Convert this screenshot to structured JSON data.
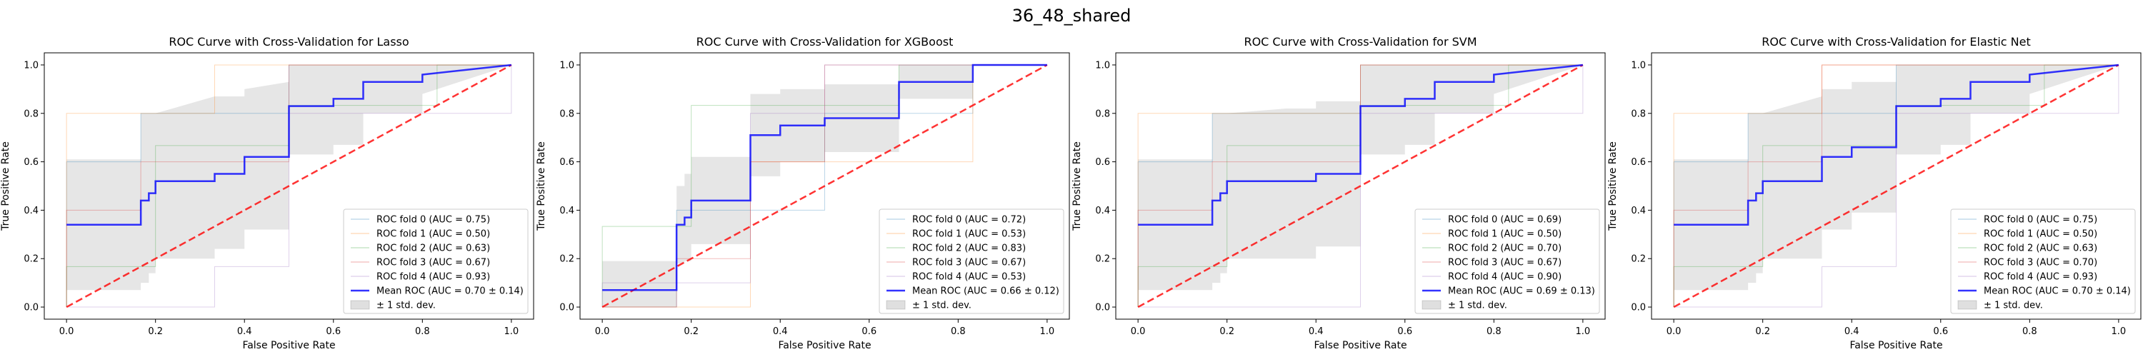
{
  "figure": {
    "suptitle": "36_48_shared"
  },
  "chart_data": [
    {
      "type": "line",
      "title": "ROC Curve with Cross-Validation for Lasso",
      "xlabel": "False Positive Rate",
      "ylabel": "True Positive Rate",
      "xlim": [
        -0.05,
        1.05
      ],
      "ylim": [
        -0.05,
        1.05
      ],
      "xticks": [
        "0.0",
        "0.2",
        "0.4",
        "0.6",
        "0.8",
        "1.0"
      ],
      "yticks": [
        "0.0",
        "0.2",
        "0.4",
        "0.6",
        "0.8",
        "1.0"
      ],
      "legend_loc": "lower-right",
      "legend": [
        "ROC fold 0 (AUC = 0.75)",
        "ROC fold 1 (AUC = 0.50)",
        "ROC fold 2 (AUC = 0.63)",
        "ROC fold 3 (AUC = 0.67)",
        "ROC fold 4 (AUC = 0.93)",
        "Mean ROC (AUC = 0.70 ± 0.14)",
        "± 1 std. dev."
      ],
      "folds": [
        {
          "x": [
            0,
            0,
            0.167,
            0.167,
            0.5,
            0.5,
            1
          ],
          "y": [
            0,
            0.6,
            0.6,
            0.8,
            0.8,
            1,
            1
          ]
        },
        {
          "x": [
            0,
            0,
            0.333,
            0.333,
            1,
            1
          ],
          "y": [
            0,
            0.8,
            0.8,
            1,
            1,
            1
          ]
        },
        {
          "x": [
            0,
            0,
            0.2,
            0.2,
            0.5,
            0.5,
            0.833,
            0.833,
            1
          ],
          "y": [
            0,
            0.167,
            0.167,
            0.667,
            0.667,
            0.833,
            0.833,
            1,
            1
          ]
        },
        {
          "x": [
            0,
            0,
            0.167,
            0.167,
            0.5,
            0.5,
            1
          ],
          "y": [
            0,
            0.4,
            0.4,
            0.6,
            0.6,
            1,
            1
          ]
        },
        {
          "x": [
            0,
            0.333,
            0.333,
            0.5,
            0.5,
            1,
            1
          ],
          "y": [
            0,
            0,
            0.167,
            0.167,
            0.8,
            0.8,
            1
          ]
        }
      ],
      "mean": {
        "x": [
          0,
          0.167,
          0.167,
          0.185,
          0.185,
          0.2,
          0.2,
          0.333,
          0.333,
          0.4,
          0.4,
          0.5,
          0.5,
          0.6,
          0.6,
          0.667,
          0.667,
          0.8,
          0.8,
          1
        ],
        "y": [
          0.34,
          0.34,
          0.44,
          0.44,
          0.47,
          0.47,
          0.52,
          0.52,
          0.55,
          0.55,
          0.62,
          0.62,
          0.83,
          0.83,
          0.86,
          0.86,
          0.93,
          0.93,
          0.96,
          1
        ]
      },
      "std_upper": [
        0.61,
        0.61,
        0.8,
        0.8,
        0.8,
        0.8,
        0.8,
        0.87,
        0.87,
        0.87,
        0.9,
        0.93,
        1,
        1,
        1,
        1,
        1,
        1,
        1,
        1
      ],
      "std_lower": [
        0.07,
        0.07,
        0.1,
        0.1,
        0.14,
        0.14,
        0.2,
        0.2,
        0.24,
        0.24,
        0.32,
        0.32,
        0.63,
        0.63,
        0.67,
        0.67,
        0.8,
        0.8,
        0.88,
        1
      ]
    },
    {
      "type": "line",
      "title": "ROC Curve with Cross-Validation for XGBoost",
      "xlabel": "False Positive Rate",
      "ylabel": "True Positive Rate",
      "xlim": [
        -0.05,
        1.05
      ],
      "ylim": [
        -0.05,
        1.05
      ],
      "xticks": [
        "0.0",
        "0.2",
        "0.4",
        "0.6",
        "0.8",
        "1.0"
      ],
      "yticks": [
        "0.0",
        "0.2",
        "0.4",
        "0.6",
        "0.8",
        "1.0"
      ],
      "legend_loc": "lower-right",
      "legend": [
        "ROC fold 0 (AUC = 0.72)",
        "ROC fold 1 (AUC = 0.53)",
        "ROC fold 2 (AUC = 0.83)",
        "ROC fold 3 (AUC = 0.67)",
        "ROC fold 4 (AUC = 0.53)",
        "Mean ROC (AUC = 0.66 ± 0.12)",
        "± 1 std. dev."
      ],
      "folds": [
        {
          "x": [
            0,
            0.167,
            0.167,
            0.5,
            0.5,
            0.833,
            0.833,
            1
          ],
          "y": [
            0,
            0,
            0.4,
            0.4,
            0.8,
            0.8,
            1,
            1
          ]
        },
        {
          "x": [
            0,
            0.333,
            0.333,
            0.833,
            0.833,
            1
          ],
          "y": [
            0,
            0,
            0.6,
            0.6,
            1,
            1
          ]
        },
        {
          "x": [
            0,
            0,
            0.2,
            0.2,
            0.667,
            0.667,
            1
          ],
          "y": [
            0,
            0.333,
            0.333,
            0.833,
            0.833,
            1,
            1
          ]
        },
        {
          "x": [
            0,
            0.167,
            0.167,
            0.333,
            0.333,
            0.5,
            0.5,
            1
          ],
          "y": [
            0,
            0,
            0.2,
            0.2,
            0.6,
            0.6,
            1,
            1
          ]
        },
        {
          "x": [
            0,
            0,
            0.333,
            0.333,
            0.5,
            0.5,
            1
          ],
          "y": [
            0,
            0.1,
            0.1,
            0.8,
            0.8,
            1,
            1
          ]
        }
      ],
      "mean": {
        "x": [
          0,
          0.167,
          0.167,
          0.185,
          0.185,
          0.2,
          0.2,
          0.333,
          0.333,
          0.4,
          0.4,
          0.5,
          0.5,
          0.667,
          0.667,
          0.833,
          0.833,
          1
        ],
        "y": [
          0.07,
          0.07,
          0.34,
          0.34,
          0.37,
          0.37,
          0.44,
          0.44,
          0.71,
          0.71,
          0.75,
          0.75,
          0.78,
          0.78,
          0.93,
          0.93,
          1,
          1
        ]
      },
      "std_upper": [
        0.19,
        0.19,
        0.5,
        0.5,
        0.55,
        0.55,
        0.62,
        0.62,
        0.88,
        0.88,
        0.9,
        0.9,
        0.92,
        0.92,
        1,
        1,
        1,
        1
      ],
      "std_lower": [
        0,
        0,
        0.18,
        0.18,
        0.19,
        0.19,
        0.26,
        0.26,
        0.54,
        0.54,
        0.6,
        0.6,
        0.64,
        0.64,
        0.86,
        0.86,
        1,
        1
      ]
    },
    {
      "type": "line",
      "title": "ROC Curve with Cross-Validation for SVM",
      "xlabel": "False Positive Rate",
      "ylabel": "True Positive Rate",
      "xlim": [
        -0.05,
        1.05
      ],
      "ylim": [
        -0.05,
        1.05
      ],
      "xticks": [
        "0.0",
        "0.2",
        "0.4",
        "0.6",
        "0.8",
        "1.0"
      ],
      "yticks": [
        "0.0",
        "0.2",
        "0.4",
        "0.6",
        "0.8",
        "1.0"
      ],
      "legend_loc": "lower-right",
      "legend": [
        "ROC fold 0 (AUC = 0.69)",
        "ROC fold 1 (AUC = 0.50)",
        "ROC fold 2 (AUC = 0.70)",
        "ROC fold 3 (AUC = 0.67)",
        "ROC fold 4 (AUC = 0.90)",
        "Mean ROC (AUC = 0.69 ± 0.13)",
        "± 1 std. dev."
      ],
      "folds": [
        {
          "x": [
            0,
            0,
            0.167,
            0.167,
            0.5,
            0.5,
            1
          ],
          "y": [
            0,
            0.6,
            0.6,
            0.8,
            0.8,
            1,
            1
          ]
        },
        {
          "x": [
            0,
            0,
            0.5,
            0.5,
            1
          ],
          "y": [
            0,
            0.8,
            0.8,
            1,
            1
          ]
        },
        {
          "x": [
            0,
            0,
            0.2,
            0.2,
            0.5,
            0.5,
            0.833,
            0.833,
            1
          ],
          "y": [
            0,
            0.167,
            0.167,
            0.667,
            0.667,
            0.833,
            0.833,
            1,
            1
          ]
        },
        {
          "x": [
            0,
            0,
            0.167,
            0.167,
            0.5,
            0.5,
            1
          ],
          "y": [
            0,
            0.4,
            0.4,
            0.6,
            0.6,
            1,
            1
          ]
        },
        {
          "x": [
            0,
            0.5,
            0.5,
            1,
            1
          ],
          "y": [
            0,
            0,
            0.8,
            0.8,
            1
          ]
        }
      ],
      "mean": {
        "x": [
          0,
          0.167,
          0.167,
          0.185,
          0.185,
          0.2,
          0.2,
          0.333,
          0.333,
          0.4,
          0.4,
          0.5,
          0.5,
          0.6,
          0.6,
          0.667,
          0.667,
          0.8,
          0.8,
          1
        ],
        "y": [
          0.34,
          0.34,
          0.44,
          0.44,
          0.47,
          0.47,
          0.52,
          0.52,
          0.52,
          0.52,
          0.55,
          0.55,
          0.83,
          0.83,
          0.86,
          0.86,
          0.93,
          0.93,
          0.96,
          1
        ]
      },
      "std_upper": [
        0.61,
        0.61,
        0.8,
        0.8,
        0.8,
        0.8,
        0.8,
        0.82,
        0.82,
        0.82,
        0.85,
        0.85,
        1,
        1,
        1,
        1,
        1,
        1,
        1,
        1
      ],
      "std_lower": [
        0.07,
        0.07,
        0.1,
        0.1,
        0.14,
        0.14,
        0.2,
        0.2,
        0.2,
        0.2,
        0.25,
        0.25,
        0.63,
        0.63,
        0.67,
        0.67,
        0.8,
        0.8,
        0.88,
        1
      ]
    },
    {
      "type": "line",
      "title": "ROC Curve with Cross-Validation for Elastic Net",
      "xlabel": "False Positive Rate",
      "ylabel": "True Positive Rate",
      "xlim": [
        -0.05,
        1.05
      ],
      "ylim": [
        -0.05,
        1.05
      ],
      "xticks": [
        "0.0",
        "0.2",
        "0.4",
        "0.6",
        "0.8",
        "1.0"
      ],
      "yticks": [
        "0.0",
        "0.2",
        "0.4",
        "0.6",
        "0.8",
        "1.0"
      ],
      "legend_loc": "lower-right",
      "legend": [
        "ROC fold 0 (AUC = 0.75)",
        "ROC fold 1 (AUC = 0.50)",
        "ROC fold 2 (AUC = 0.63)",
        "ROC fold 3 (AUC = 0.70)",
        "ROC fold 4 (AUC = 0.93)",
        "Mean ROC (AUC = 0.70 ± 0.14)",
        "± 1 std. dev."
      ],
      "folds": [
        {
          "x": [
            0,
            0,
            0.167,
            0.167,
            0.5,
            0.5,
            1
          ],
          "y": [
            0,
            0.6,
            0.6,
            0.8,
            0.8,
            1,
            1
          ]
        },
        {
          "x": [
            0,
            0,
            0.333,
            0.333,
            1,
            1
          ],
          "y": [
            0,
            0.8,
            0.8,
            1,
            1,
            1
          ]
        },
        {
          "x": [
            0,
            0,
            0.2,
            0.2,
            0.5,
            0.5,
            0.833,
            0.833,
            1
          ],
          "y": [
            0,
            0.167,
            0.167,
            0.667,
            0.667,
            0.833,
            0.833,
            1,
            1
          ]
        },
        {
          "x": [
            0,
            0,
            0.167,
            0.167,
            0.333,
            0.333,
            1
          ],
          "y": [
            0,
            0.4,
            0.4,
            0.6,
            0.6,
            1,
            1
          ]
        },
        {
          "x": [
            0,
            0.333,
            0.333,
            0.5,
            0.5,
            1,
            1
          ],
          "y": [
            0,
            0,
            0.167,
            0.167,
            0.8,
            0.8,
            1
          ]
        }
      ],
      "mean": {
        "x": [
          0,
          0.167,
          0.167,
          0.185,
          0.185,
          0.2,
          0.2,
          0.333,
          0.333,
          0.4,
          0.4,
          0.5,
          0.5,
          0.6,
          0.6,
          0.667,
          0.667,
          0.8,
          0.8,
          1
        ],
        "y": [
          0.34,
          0.34,
          0.44,
          0.44,
          0.47,
          0.47,
          0.52,
          0.52,
          0.62,
          0.62,
          0.66,
          0.66,
          0.83,
          0.83,
          0.86,
          0.86,
          0.93,
          0.93,
          0.96,
          1
        ]
      },
      "std_upper": [
        0.61,
        0.61,
        0.8,
        0.8,
        0.8,
        0.8,
        0.8,
        0.87,
        0.9,
        0.9,
        0.93,
        0.93,
        1,
        1,
        1,
        1,
        1,
        1,
        1,
        1
      ],
      "std_lower": [
        0.07,
        0.07,
        0.1,
        0.1,
        0.14,
        0.14,
        0.2,
        0.2,
        0.32,
        0.32,
        0.39,
        0.39,
        0.63,
        0.63,
        0.67,
        0.67,
        0.8,
        0.8,
        0.88,
        1
      ]
    }
  ],
  "colors": {
    "fold": [
      "#1f77b4",
      "#ff7f0e",
      "#2ca02c",
      "#d62728",
      "#9467bd"
    ],
    "mean": "#0000ff",
    "chance": "#ff0000",
    "band": "#808080"
  }
}
